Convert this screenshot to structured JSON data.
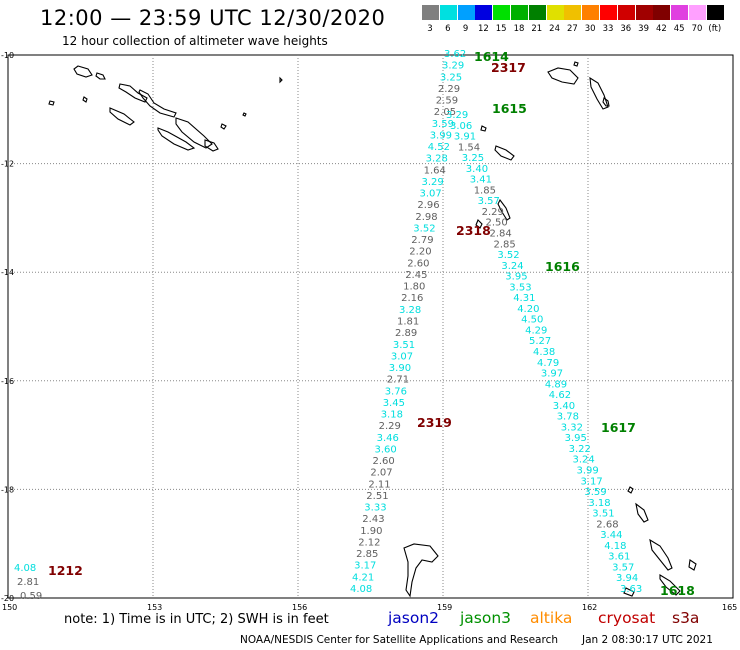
{
  "title": "12:00 — 23:59 UTC 12/30/2020",
  "subtitle": "12 hour collection of altimeter wave heights",
  "colorbar": {
    "labels": [
      "3",
      "6",
      "9",
      "12",
      "15",
      "18",
      "21",
      "24",
      "27",
      "30",
      "33",
      "36",
      "39",
      "42",
      "45",
      "70",
      "(ft)"
    ],
    "colors": [
      "#7f7f7f",
      "#00e0e0",
      "#00a0ff",
      "#0000e0",
      "#00e000",
      "#00b000",
      "#008000",
      "#e0e000",
      "#f0c000",
      "#ff8000",
      "#ff0000",
      "#d00000",
      "#a00000",
      "#800000",
      "#e040e0",
      "#ffa0ff",
      "#000000"
    ]
  },
  "axes": {
    "lon_ticks": [
      "150",
      "153",
      "156",
      "159",
      "162",
      "165"
    ],
    "lat_ticks": [
      "-10",
      "-12",
      "-14",
      "-16",
      "-18",
      "-20"
    ]
  },
  "tracks": [
    {
      "points": [
        {
          "v": "3.62",
          "c": "#00dede"
        },
        {
          "v": "3.29",
          "c": "#00dede"
        },
        {
          "v": "3.25",
          "c": "#00dede"
        },
        {
          "v": "2.29",
          "c": "#606060"
        },
        {
          "v": "2.59",
          "c": "#606060"
        },
        {
          "v": "2.05",
          "c": "#606060"
        },
        {
          "v": "3.59",
          "c": "#00dede"
        },
        {
          "v": "3.99",
          "c": "#00dede"
        },
        {
          "v": "4.52",
          "c": "#00dede"
        },
        {
          "v": "3.28",
          "c": "#00dede"
        },
        {
          "v": "1.64",
          "c": "#606060"
        },
        {
          "v": "3.29",
          "c": "#00dede"
        },
        {
          "v": "3.07",
          "c": "#00dede"
        },
        {
          "v": "2.96",
          "c": "#606060"
        },
        {
          "v": "2.98",
          "c": "#606060"
        },
        {
          "v": "3.52",
          "c": "#00dede"
        },
        {
          "v": "2.79",
          "c": "#606060"
        },
        {
          "v": "2.20",
          "c": "#606060"
        },
        {
          "v": "2.60",
          "c": "#606060"
        },
        {
          "v": "2.45",
          "c": "#606060"
        },
        {
          "v": "1.80",
          "c": "#606060"
        },
        {
          "v": "2.16",
          "c": "#606060"
        },
        {
          "v": "3.28",
          "c": "#00dede"
        },
        {
          "v": "1.81",
          "c": "#606060"
        },
        {
          "v": "2.89",
          "c": "#606060"
        },
        {
          "v": "3.51",
          "c": "#00dede"
        },
        {
          "v": "3.07",
          "c": "#00dede"
        },
        {
          "v": "3.90",
          "c": "#00dede"
        },
        {
          "v": "2.71",
          "c": "#606060"
        },
        {
          "v": "3.76",
          "c": "#00dede"
        },
        {
          "v": "3.45",
          "c": "#00dede"
        },
        {
          "v": "3.18",
          "c": "#00dede"
        },
        {
          "v": "2.29",
          "c": "#606060"
        },
        {
          "v": "3.46",
          "c": "#00dede"
        },
        {
          "v": "3.60",
          "c": "#00dede"
        },
        {
          "v": "2.60",
          "c": "#606060"
        },
        {
          "v": "2.07",
          "c": "#606060"
        },
        {
          "v": "2.11",
          "c": "#606060"
        },
        {
          "v": "2.51",
          "c": "#606060"
        },
        {
          "v": "3.33",
          "c": "#00dede"
        },
        {
          "v": "2.43",
          "c": "#606060"
        },
        {
          "v": "1.90",
          "c": "#606060"
        },
        {
          "v": "2.12",
          "c": "#606060"
        },
        {
          "v": "2.85",
          "c": "#606060"
        },
        {
          "v": "3.17",
          "c": "#00dede"
        },
        {
          "v": "4.21",
          "c": "#00dede"
        },
        {
          "v": "4.08",
          "c": "#00dede"
        }
      ]
    },
    {
      "points": [
        {
          "v": "3.29",
          "c": "#00dede"
        },
        {
          "v": "3.06",
          "c": "#00dede"
        },
        {
          "v": "3.91",
          "c": "#00dede"
        },
        {
          "v": "1.54",
          "c": "#606060"
        },
        {
          "v": "3.25",
          "c": "#00dede"
        },
        {
          "v": "3.40",
          "c": "#00dede"
        },
        {
          "v": "3.41",
          "c": "#00dede"
        },
        {
          "v": "1.85",
          "c": "#606060"
        },
        {
          "v": "3.57",
          "c": "#00dede"
        },
        {
          "v": "2.29",
          "c": "#606060"
        },
        {
          "v": "2.50",
          "c": "#606060"
        },
        {
          "v": "2.84",
          "c": "#606060"
        },
        {
          "v": "2.85",
          "c": "#606060"
        },
        {
          "v": "3.52",
          "c": "#00dede"
        },
        {
          "v": "3.24",
          "c": "#00dede"
        },
        {
          "v": "3.95",
          "c": "#00dede"
        },
        {
          "v": "3.53",
          "c": "#00dede"
        },
        {
          "v": "4.31",
          "c": "#00dede"
        },
        {
          "v": "4.20",
          "c": "#00dede"
        },
        {
          "v": "4.50",
          "c": "#00dede"
        },
        {
          "v": "4.29",
          "c": "#00dede"
        },
        {
          "v": "5.27",
          "c": "#00dede"
        },
        {
          "v": "4.38",
          "c": "#00dede"
        },
        {
          "v": "4.79",
          "c": "#00dede"
        },
        {
          "v": "3.97",
          "c": "#00dede"
        },
        {
          "v": "4.89",
          "c": "#00dede"
        },
        {
          "v": "4.62",
          "c": "#00dede"
        },
        {
          "v": "3.40",
          "c": "#00dede"
        },
        {
          "v": "3.78",
          "c": "#00dede"
        },
        {
          "v": "3.32",
          "c": "#00dede"
        },
        {
          "v": "3.95",
          "c": "#00dede"
        },
        {
          "v": "3.22",
          "c": "#00dede"
        },
        {
          "v": "3.24",
          "c": "#00dede"
        },
        {
          "v": "3.99",
          "c": "#00dede"
        },
        {
          "v": "3.17",
          "c": "#00dede"
        },
        {
          "v": "3.59",
          "c": "#00dede"
        },
        {
          "v": "3.18",
          "c": "#00dede"
        },
        {
          "v": "3.51",
          "c": "#00dede"
        },
        {
          "v": "2.68",
          "c": "#606060"
        },
        {
          "v": "3.44",
          "c": "#00dede"
        },
        {
          "v": "4.18",
          "c": "#00dede"
        },
        {
          "v": "3.61",
          "c": "#00dede"
        },
        {
          "v": "3.57",
          "c": "#00dede"
        },
        {
          "v": "3.94",
          "c": "#00dede"
        },
        {
          "v": "3.63",
          "c": "#00dede"
        }
      ]
    },
    {
      "points": [
        {
          "v": "4.08",
          "c": "#00dede"
        },
        {
          "v": "2.81",
          "c": "#606060"
        },
        {
          "v": "0.59",
          "c": "#606060"
        }
      ]
    }
  ],
  "time_labels": [
    {
      "text": "1614",
      "c": "#008000"
    },
    {
      "text": "2317",
      "c": "#800000"
    },
    {
      "text": "1615",
      "c": "#008000"
    },
    {
      "text": "2318",
      "c": "#800000"
    },
    {
      "text": "1616",
      "c": "#008000"
    },
    {
      "text": "2319",
      "c": "#800000"
    },
    {
      "text": "1617",
      "c": "#008000"
    },
    {
      "text": "1618",
      "c": "#008000"
    },
    {
      "text": "1212",
      "c": "#800000"
    }
  ],
  "note": "note:  1) Time is in UTC;  2) SWH is in feet",
  "satellites": [
    {
      "name": "jason2",
      "c": "#0000c0"
    },
    {
      "name": "jason3",
      "c": "#009000"
    },
    {
      "name": "altika",
      "c": "#ff8c00"
    },
    {
      "name": "cryosat",
      "c": "#c00000"
    },
    {
      "name": "s3a",
      "c": "#800000"
    }
  ],
  "footer_left": "NOAA/NESDIS Center for Satellite Applications and Research",
  "footer_right": "Jan  2 08:30:17 UTC 2021"
}
